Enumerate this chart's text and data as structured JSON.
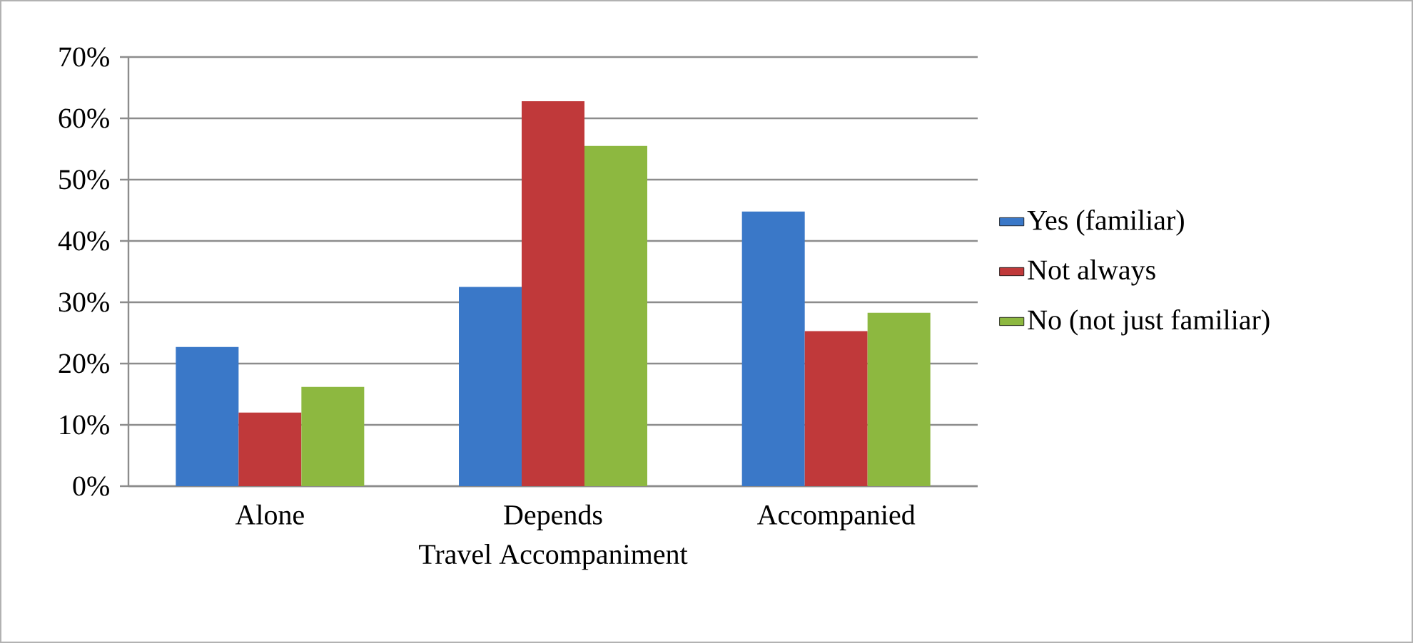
{
  "chart_data": {
    "type": "bar",
    "xlabel": "Travel Accompaniment",
    "categories": [
      "Alone",
      "Depends",
      "Accompanied"
    ],
    "series": [
      {
        "name": "Yes (familiar)",
        "color": "#3a78c8",
        "values": [
          22.7,
          32.5,
          44.8
        ]
      },
      {
        "name": "Not always",
        "color": "#c0393a",
        "values": [
          12.0,
          62.8,
          25.3
        ]
      },
      {
        "name": "No (not just familiar)",
        "color": "#8db840",
        "values": [
          16.2,
          55.5,
          28.3
        ]
      }
    ],
    "ylim": [
      0,
      70
    ],
    "yticks": [
      {
        "value": 0,
        "label": "0%"
      },
      {
        "value": 10,
        "label": "10%"
      },
      {
        "value": 20,
        "label": "20%"
      },
      {
        "value": 30,
        "label": "30%"
      },
      {
        "value": 40,
        "label": "40%"
      },
      {
        "value": 50,
        "label": "50%"
      },
      {
        "value": 60,
        "label": "60%"
      },
      {
        "value": 70,
        "label": "70%"
      }
    ],
    "grid": "y",
    "legend": "right"
  }
}
